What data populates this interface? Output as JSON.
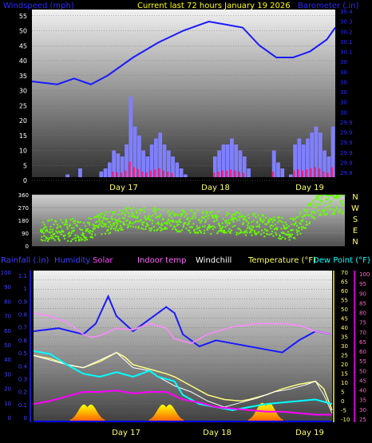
{
  "header": {
    "left_title": "Windspeed (mph)",
    "center_title": "Current last 72 hours January 19 2026",
    "right_title": "Barometer (.in)"
  },
  "days": [
    "Day 17",
    "Day 18",
    "Day 19"
  ],
  "colors": {
    "wind": "#8080ff",
    "gust": "#ff2080",
    "baro": "#1a1aff",
    "dir": "#66ff00",
    "rain": "#0000ff",
    "humidity": "#1a1aff",
    "solar": "#ff00ff",
    "indoor": "#ff88ff",
    "windchill": "#ffffff",
    "temperature": "#ffff80",
    "dewpoint": "#00ffff",
    "solarfill": "#ff8800"
  },
  "chart_data": [
    {
      "type": "line",
      "x_unit": "hours (72h window)",
      "left_axis": {
        "label": "Windspeed (mph)",
        "ticks": [
          0,
          5,
          10,
          15,
          20,
          25,
          30,
          35,
          40,
          45,
          50,
          55
        ],
        "range": [
          0,
          56
        ]
      },
      "right_axis": {
        "label": "Barometer (.in)",
        "ticks": [
          "29.8",
          "29.9",
          "29.9",
          "29.9",
          "29.9",
          "29.9",
          "30",
          "30",
          "30",
          "30",
          "30",
          "30",
          "30.1",
          "30.1",
          "30.2",
          "30.3",
          "30.4"
        ],
        "range": [
          29.8,
          30.4
        ]
      },
      "series": [
        {
          "name": "Windspeed (mph)",
          "kind": "bar",
          "values_hourly_mph": [
            0,
            0,
            0,
            0,
            0,
            0,
            0,
            0,
            2,
            0,
            0,
            4,
            1,
            0,
            0,
            0,
            3,
            4,
            6,
            10,
            9,
            8,
            12,
            28,
            18,
            15,
            10,
            8,
            12,
            14,
            16,
            12,
            10,
            8,
            6,
            4,
            2,
            0,
            0,
            0,
            0,
            0,
            0,
            8,
            10,
            12,
            12,
            14,
            12,
            10,
            8,
            4,
            0,
            0,
            0,
            0,
            0,
            10,
            6,
            4,
            0,
            2,
            12,
            14,
            12,
            14,
            16,
            18,
            16,
            10,
            8,
            18
          ]
        },
        {
          "name": "Barometer (.in)",
          "kind": "line",
          "points": [
            [
              0,
              32
            ],
            [
              6,
              31
            ],
            [
              10,
              33
            ],
            [
              14,
              31
            ],
            [
              18,
              34
            ],
            [
              24,
              40
            ],
            [
              30,
              45
            ],
            [
              36,
              49
            ],
            [
              42,
              52
            ],
            [
              46,
              51
            ],
            [
              50,
              50
            ],
            [
              54,
              44
            ],
            [
              58,
              40
            ],
            [
              62,
              40
            ],
            [
              66,
              42
            ],
            [
              70,
              46
            ],
            [
              72,
              50
            ]
          ]
        }
      ]
    },
    {
      "type": "scatter",
      "x_unit": "hours (72h window)",
      "left_axis": {
        "ticks": [
          0,
          90,
          180,
          270,
          360
        ],
        "range": [
          0,
          360
        ]
      },
      "right_axis": {
        "ticks": [
          "N",
          "W",
          "S",
          "E",
          "N"
        ]
      },
      "series": [
        {
          "name": "Wind direction (deg)",
          "band_centers": [
            [
              0,
              110
            ],
            [
              10,
              120
            ],
            [
              20,
              200
            ],
            [
              30,
              190
            ],
            [
              40,
              170
            ],
            [
              50,
              160
            ],
            [
              60,
              120
            ],
            [
              66,
              300
            ],
            [
              72,
              310
            ]
          ]
        }
      ]
    },
    {
      "type": "line",
      "x_unit": "hours (72h window)",
      "legend": [
        "Rainfall (.in)",
        "Humidity",
        "Solar",
        "Indoor temp",
        "Windchill",
        "Temperature (°F)",
        "Dew Point (°F)"
      ],
      "axes": {
        "rain": {
          "ticks": [
            0,
            10,
            20,
            30,
            40,
            50,
            60,
            70,
            80,
            90,
            100
          ]
        },
        "humidity": {
          "ticks": [
            0,
            0.1,
            0.2,
            0.3,
            0.4,
            0.5,
            0.6,
            0.7,
            0.8,
            0.9,
            1,
            1.1
          ]
        },
        "temperature": {
          "ticks": [
            -10,
            -5,
            0,
            5,
            10,
            15,
            20,
            25,
            30,
            35,
            40,
            45,
            50,
            55,
            60,
            65,
            70
          ]
        },
        "dewpoint": {
          "ticks": [
            25,
            30,
            35,
            40,
            45,
            50,
            55,
            60,
            65,
            70,
            75,
            80,
            85,
            90,
            95,
            100
          ]
        }
      },
      "series": [
        {
          "name": "Humidity",
          "points": [
            [
              0,
              60
            ],
            [
              6,
              62
            ],
            [
              12,
              58
            ],
            [
              15,
              65
            ],
            [
              18,
              83
            ],
            [
              20,
              70
            ],
            [
              24,
              60
            ],
            [
              28,
              68
            ],
            [
              32,
              76
            ],
            [
              34,
              72
            ],
            [
              36,
              58
            ],
            [
              40,
              50
            ],
            [
              44,
              54
            ],
            [
              48,
              52
            ],
            [
              52,
              50
            ],
            [
              56,
              48
            ],
            [
              60,
              46
            ],
            [
              64,
              54
            ],
            [
              68,
              60
            ],
            [
              72,
              58
            ]
          ]
        },
        {
          "name": "Indoor temp",
          "points": [
            [
              0,
              72
            ],
            [
              4,
              70
            ],
            [
              8,
              66
            ],
            [
              12,
              58
            ],
            [
              14,
              56
            ],
            [
              16,
              57
            ],
            [
              20,
              62
            ],
            [
              24,
              61
            ],
            [
              28,
              65
            ],
            [
              32,
              62
            ],
            [
              34,
              55
            ],
            [
              38,
              52
            ],
            [
              42,
              58
            ],
            [
              48,
              63
            ],
            [
              54,
              65
            ],
            [
              60,
              65
            ],
            [
              64,
              64
            ],
            [
              68,
              60
            ],
            [
              72,
              58
            ]
          ]
        },
        {
          "name": "Temperature (°F)",
          "points": [
            [
              0,
              44
            ],
            [
              4,
              42
            ],
            [
              8,
              38
            ],
            [
              12,
              36
            ],
            [
              16,
              40
            ],
            [
              20,
              46
            ],
            [
              22,
              43
            ],
            [
              24,
              38
            ],
            [
              28,
              35
            ],
            [
              32,
              32
            ],
            [
              34,
              30
            ],
            [
              38,
              24
            ],
            [
              42,
              18
            ],
            [
              46,
              15
            ],
            [
              50,
              14
            ],
            [
              52,
              15
            ],
            [
              56,
              18
            ],
            [
              60,
              22
            ],
            [
              64,
              25
            ],
            [
              68,
              27
            ],
            [
              70,
              22
            ],
            [
              72,
              8
            ]
          ]
        },
        {
          "name": "Windchill",
          "points": [
            [
              0,
              44
            ],
            [
              8,
              38
            ],
            [
              12,
              36
            ],
            [
              20,
              46
            ],
            [
              24,
              36
            ],
            [
              28,
              34
            ],
            [
              30,
              30
            ],
            [
              34,
              24
            ],
            [
              38,
              20
            ],
            [
              42,
              14
            ],
            [
              46,
              10
            ],
            [
              50,
              13
            ],
            [
              54,
              16
            ],
            [
              58,
              20
            ],
            [
              62,
              22
            ],
            [
              66,
              25
            ],
            [
              68,
              27
            ],
            [
              70,
              18
            ],
            [
              72,
              6
            ]
          ]
        },
        {
          "name": "Dew Point (°F)",
          "points": [
            [
              0,
              47
            ],
            [
              4,
              45
            ],
            [
              8,
              38
            ],
            [
              12,
              32
            ],
            [
              16,
              30
            ],
            [
              20,
              33
            ],
            [
              24,
              30
            ],
            [
              28,
              34
            ],
            [
              30,
              30
            ],
            [
              34,
              27
            ],
            [
              36,
              18
            ],
            [
              40,
              12
            ],
            [
              44,
              10
            ],
            [
              48,
              8
            ],
            [
              52,
              10
            ],
            [
              56,
              12
            ],
            [
              60,
              13
            ],
            [
              64,
              14
            ],
            [
              68,
              15
            ],
            [
              72,
              12
            ]
          ]
        },
        {
          "name": "Solar",
          "points": [
            [
              0,
              12
            ],
            [
              4,
              14
            ],
            [
              8,
              17
            ],
            [
              12,
              20
            ],
            [
              16,
              20
            ],
            [
              20,
              21
            ],
            [
              24,
              19
            ],
            [
              28,
              20
            ],
            [
              32,
              20
            ],
            [
              36,
              15
            ],
            [
              40,
              13
            ],
            [
              44,
              10
            ],
            [
              48,
              9
            ],
            [
              52,
              8
            ],
            [
              56,
              7
            ],
            [
              60,
              7
            ],
            [
              64,
              6
            ],
            [
              68,
              5
            ],
            [
              72,
              5
            ]
          ]
        },
        {
          "name": "Solar radiation",
          "kind": "area",
          "peaks": [
            [
              13,
              28
            ],
            [
              32,
              28
            ],
            [
              56,
              31
            ]
          ]
        }
      ]
    }
  ]
}
